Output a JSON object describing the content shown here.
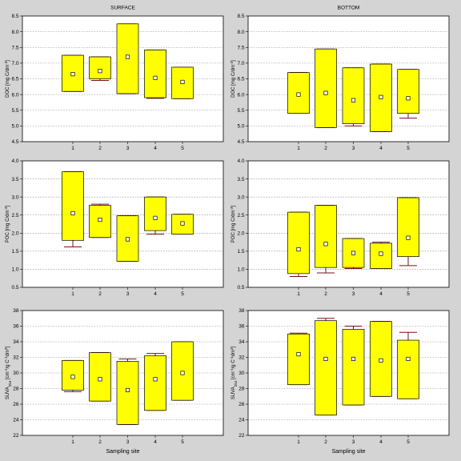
{
  "chart_data": [
    {
      "id": "surface-doc",
      "type": "box",
      "title": "SURFACE",
      "ylabel_main": "DOC [mg C/dm",
      "ylabel_sup": "-3",
      "ylabel_end": "]",
      "xlabel": "",
      "ylim": [
        4.5,
        8.5
      ],
      "yticks": [
        "4.5",
        "5.0",
        "5.5",
        "6.0",
        "6.5",
        "7.0",
        "7.5",
        "8.0",
        "8.5"
      ],
      "categories": [
        "1",
        "2",
        "3",
        "4",
        "5"
      ],
      "boxes": [
        {
          "low": 6.1,
          "high": 7.25,
          "median": 6.65,
          "wmin": 6.1,
          "wmax": 7.25
        },
        {
          "low": 6.5,
          "high": 7.2,
          "median": 6.75,
          "wmin": 6.45,
          "wmax": 7.2
        },
        {
          "low": 6.03,
          "high": 8.25,
          "median": 7.2,
          "wmin": 6.03,
          "wmax": 8.25
        },
        {
          "low": 5.9,
          "high": 7.42,
          "median": 6.53,
          "wmin": 5.88,
          "wmax": 7.42
        },
        {
          "low": 5.87,
          "high": 6.87,
          "median": 6.4,
          "wmin": 5.87,
          "wmax": 6.87
        }
      ]
    },
    {
      "id": "bottom-doc",
      "type": "box",
      "title": "BOTTOM",
      "ylabel_main": "DOC [mg C/dm",
      "ylabel_sup": "-3",
      "ylabel_end": "]",
      "xlabel": "",
      "ylim": [
        4.5,
        8.5
      ],
      "yticks": [
        "4.5",
        "5.0",
        "5.5",
        "6.0",
        "6.5",
        "7.0",
        "7.5",
        "8.0",
        "8.5"
      ],
      "categories": [
        "1",
        "2",
        "3",
        "4",
        "5"
      ],
      "boxes": [
        {
          "low": 5.4,
          "high": 6.7,
          "median": 6.0,
          "wmin": 5.4,
          "wmax": 6.7
        },
        {
          "low": 4.95,
          "high": 7.45,
          "median": 6.05,
          "wmin": 4.95,
          "wmax": 7.45
        },
        {
          "low": 5.07,
          "high": 6.85,
          "median": 5.82,
          "wmin": 5.0,
          "wmax": 6.85
        },
        {
          "low": 4.82,
          "high": 6.97,
          "median": 5.92,
          "wmin": 4.82,
          "wmax": 6.97
        },
        {
          "low": 5.4,
          "high": 6.8,
          "median": 5.88,
          "wmin": 5.25,
          "wmax": 6.8
        }
      ]
    },
    {
      "id": "surface-poc",
      "type": "box",
      "title": "",
      "ylabel_main": "POC [mg C/dm",
      "ylabel_sup": "-3",
      "ylabel_end": "]",
      "xlabel": "",
      "ylim": [
        0.5,
        4.0
      ],
      "yticks": [
        "0.5",
        "1.0",
        "1.5",
        "2.0",
        "2.5",
        "3.0",
        "3.5",
        "4.0"
      ],
      "categories": [
        "1",
        "2",
        "3",
        "4",
        "5"
      ],
      "boxes": [
        {
          "low": 1.8,
          "high": 3.7,
          "median": 2.55,
          "wmin": 1.62,
          "wmax": 3.7
        },
        {
          "low": 1.88,
          "high": 2.77,
          "median": 2.37,
          "wmin": 1.88,
          "wmax": 2.8
        },
        {
          "low": 1.22,
          "high": 2.48,
          "median": 1.83,
          "wmin": 1.22,
          "wmax": 2.48
        },
        {
          "low": 2.07,
          "high": 3.0,
          "median": 2.42,
          "wmin": 1.97,
          "wmax": 3.0
        },
        {
          "low": 1.97,
          "high": 2.52,
          "median": 2.27,
          "wmin": 1.97,
          "wmax": 2.52
        }
      ]
    },
    {
      "id": "bottom-poc",
      "type": "box",
      "title": "",
      "ylabel_main": "POC [mg C/dm",
      "ylabel_sup": "-3",
      "ylabel_end": "]",
      "xlabel": "",
      "ylim": [
        0.5,
        4.0
      ],
      "yticks": [
        "0.5",
        "1.0",
        "1.5",
        "2.0",
        "2.5",
        "3.0",
        "3.5",
        "4.0"
      ],
      "categories": [
        "1",
        "2",
        "3",
        "4",
        "5"
      ],
      "boxes": [
        {
          "low": 0.88,
          "high": 2.58,
          "median": 1.55,
          "wmin": 0.8,
          "wmax": 2.58
        },
        {
          "low": 1.05,
          "high": 2.77,
          "median": 1.7,
          "wmin": 0.9,
          "wmax": 2.77
        },
        {
          "low": 1.05,
          "high": 1.85,
          "median": 1.45,
          "wmin": 1.02,
          "wmax": 1.85
        },
        {
          "low": 1.02,
          "high": 1.72,
          "median": 1.43,
          "wmin": 1.02,
          "wmax": 1.75
        },
        {
          "low": 1.35,
          "high": 2.98,
          "median": 1.87,
          "wmin": 1.1,
          "wmax": 2.98
        }
      ]
    },
    {
      "id": "surface-suva",
      "type": "box",
      "title": "",
      "ylabel_main": "SUVA",
      "ylabel_sub": "254",
      "ylabel_rest": " [cm",
      "ylabel_sup": "-1",
      "ylabel_rest2": "/g C",
      "ylabel_sup2": "-1",
      "ylabel_end": "dm",
      "ylabel_sup3": "3",
      "ylabel_close": "]",
      "xlabel": "Sampling site",
      "ylim": [
        22,
        38
      ],
      "yticks": [
        "22",
        "24",
        "26",
        "28",
        "30",
        "32",
        "34",
        "36",
        "38"
      ],
      "categories": [
        "1",
        "2",
        "3",
        "4",
        "5"
      ],
      "boxes": [
        {
          "low": 27.8,
          "high": 31.6,
          "median": 29.5,
          "wmin": 27.6,
          "wmax": 31.6
        },
        {
          "low": 26.4,
          "high": 32.6,
          "median": 29.2,
          "wmin": 26.4,
          "wmax": 32.6
        },
        {
          "low": 23.4,
          "high": 31.5,
          "median": 27.8,
          "wmin": 23.4,
          "wmax": 31.8
        },
        {
          "low": 25.2,
          "high": 32.2,
          "median": 29.2,
          "wmin": 25.2,
          "wmax": 32.5
        },
        {
          "low": 26.5,
          "high": 34.0,
          "median": 30.0,
          "wmin": 26.5,
          "wmax": 34.0
        }
      ]
    },
    {
      "id": "bottom-suva",
      "type": "box",
      "title": "",
      "ylabel_main": "SUVA",
      "ylabel_sub": "254",
      "ylabel_rest": " [cm",
      "ylabel_sup": "-1",
      "ylabel_rest2": "/g C",
      "ylabel_sup2": "-1",
      "ylabel_end": "dm",
      "ylabel_sup3": "3",
      "ylabel_close": "]",
      "xlabel": "Sampling site",
      "ylim": [
        22,
        38
      ],
      "yticks": [
        "22",
        "24",
        "26",
        "28",
        "30",
        "32",
        "34",
        "36",
        "38"
      ],
      "categories": [
        "1",
        "2",
        "3",
        "4",
        "5"
      ],
      "boxes": [
        {
          "low": 28.5,
          "high": 35.0,
          "median": 32.4,
          "wmin": 28.5,
          "wmax": 35.1
        },
        {
          "low": 24.6,
          "high": 36.7,
          "median": 31.8,
          "wmin": 24.6,
          "wmax": 37.0
        },
        {
          "low": 25.9,
          "high": 35.6,
          "median": 31.8,
          "wmin": 25.9,
          "wmax": 36.0
        },
        {
          "low": 27.0,
          "high": 36.6,
          "median": 31.6,
          "wmin": 27.0,
          "wmax": 36.6
        },
        {
          "low": 26.7,
          "high": 34.2,
          "median": 31.8,
          "wmin": 26.7,
          "wmax": 35.2
        }
      ]
    }
  ]
}
